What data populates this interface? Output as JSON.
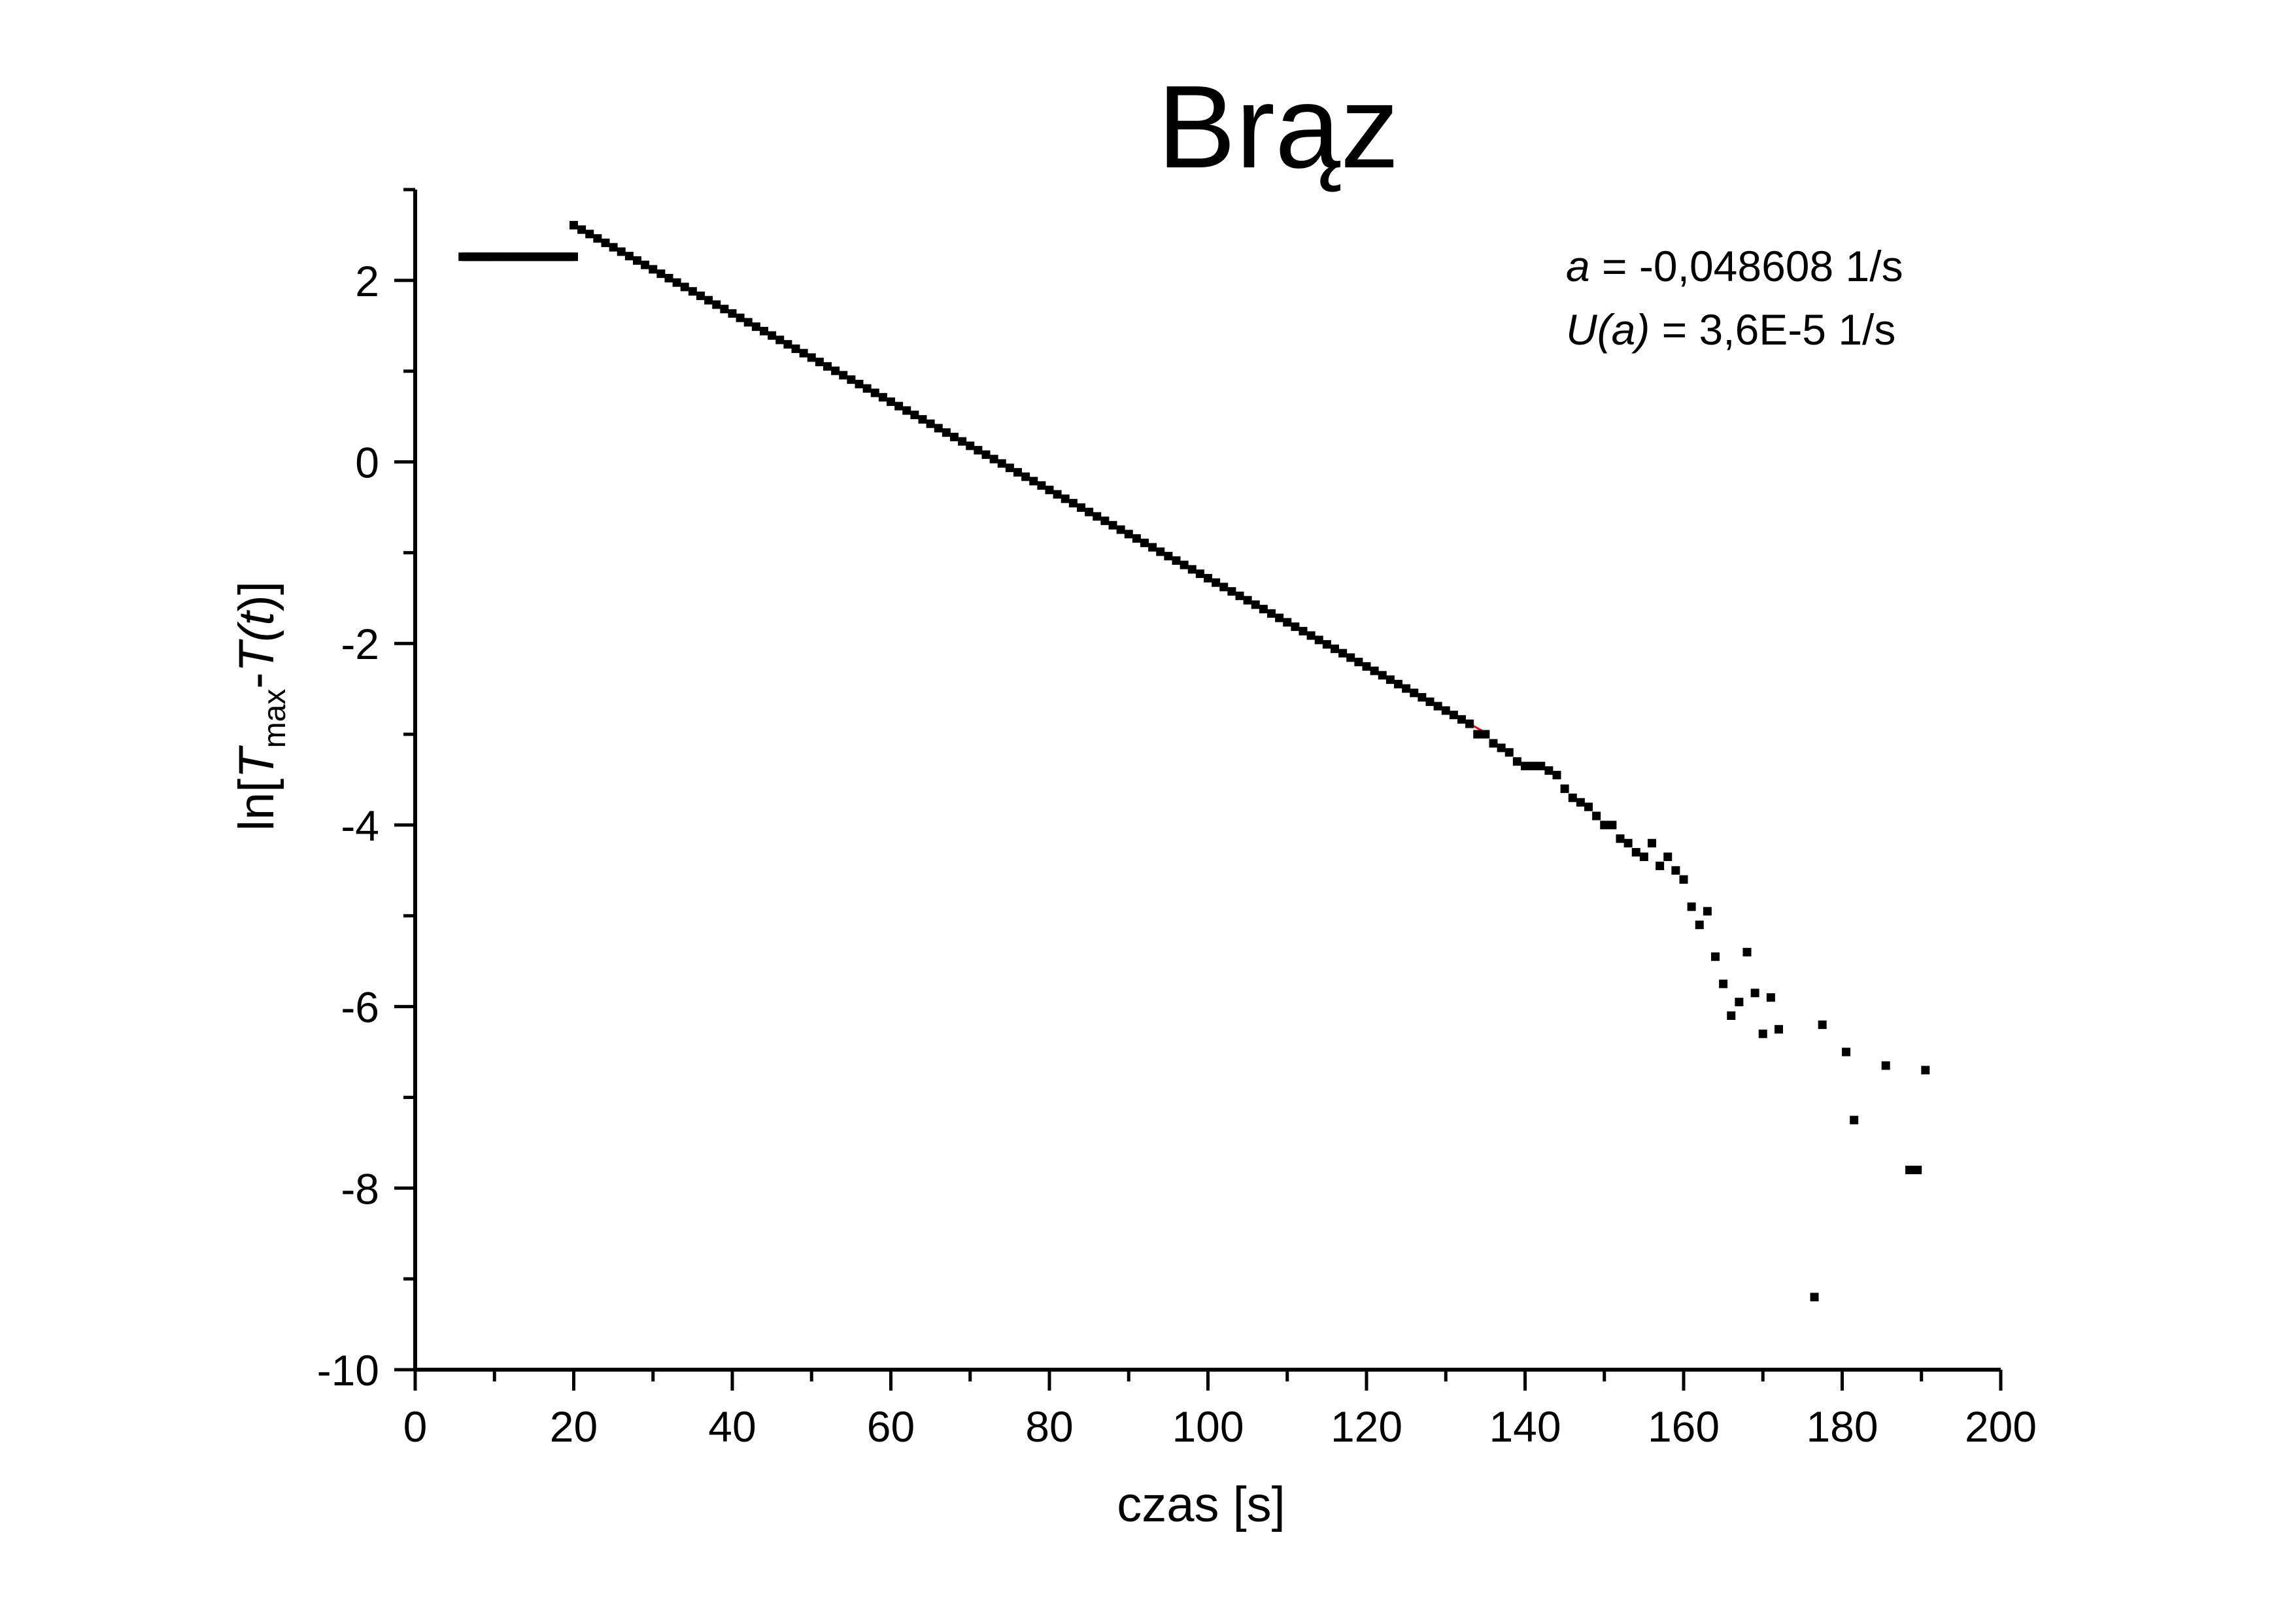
{
  "chart_data": {
    "type": "scatter",
    "title": "Brąz",
    "xlabel": "czas [s]",
    "ylabel": {
      "prefix": "ln[",
      "T": "T",
      "sub": "max",
      "minus": "-",
      "Tt": "T(",
      "t": "t",
      "close": ")]"
    },
    "xlim": [
      0,
      200
    ],
    "ylim": [
      -10,
      3
    ],
    "x_major_ticks": [
      0,
      20,
      40,
      60,
      80,
      100,
      120,
      140,
      160,
      180,
      200
    ],
    "y_major_ticks": [
      -10,
      -8,
      -6,
      -4,
      -2,
      0,
      2
    ],
    "x_tick_labels": [
      "0",
      "20",
      "40",
      "60",
      "80",
      "100",
      "120",
      "140",
      "160",
      "180",
      "200"
    ],
    "y_tick_labels": [
      "-10",
      "-8",
      "-6",
      "-4",
      "-2",
      "0",
      "2"
    ],
    "grid": false,
    "marker_color": "#000000",
    "fit_color": "#ff0000",
    "annotation": {
      "line1_var": "a",
      "line1_rest": " = -0,048608 1/s",
      "line2_var": "U(a)",
      "line2_rest": " = 3,6E-5 1/s"
    },
    "fit": {
      "slope": -0.048608,
      "intercept": 3.58,
      "x_range": [
        28.5,
        135.5
      ]
    },
    "series": [
      {
        "plateau": {
          "x_start": 6,
          "x_end": 20,
          "step": 0.5,
          "y": 2.26
        },
        "dense": {
          "x_start": 20,
          "x_end": 133,
          "step": 1
        },
        "x": [
          134,
          135,
          136,
          137,
          138,
          139,
          140,
          141,
          142,
          143,
          144,
          145,
          146,
          147,
          148,
          149,
          150,
          151,
          152,
          153,
          154,
          155,
          156,
          157,
          158,
          159,
          160,
          161,
          162,
          163,
          164,
          165,
          166,
          167,
          168,
          169,
          170,
          171,
          172,
          176.5,
          177.5,
          180.5,
          181.5,
          185.5,
          188.5,
          189.5,
          190.5
        ],
        "y": [
          -3.0,
          -3.0,
          -3.1,
          -3.15,
          -3.2,
          -3.3,
          -3.35,
          -3.35,
          -3.35,
          -3.4,
          -3.45,
          -3.6,
          -3.7,
          -3.75,
          -3.8,
          -3.9,
          -4.0,
          -4.0,
          -4.15,
          -4.2,
          -4.3,
          -4.35,
          -4.2,
          -4.45,
          -4.35,
          -4.5,
          -4.6,
          -4.9,
          -5.1,
          -4.95,
          -5.45,
          -5.75,
          -6.1,
          -5.95,
          -5.4,
          -5.85,
          -6.3,
          -5.9,
          -6.25,
          -9.2,
          -6.2,
          -6.5,
          -7.25,
          -6.65,
          -7.8,
          -7.8,
          -6.7
        ]
      }
    ]
  }
}
